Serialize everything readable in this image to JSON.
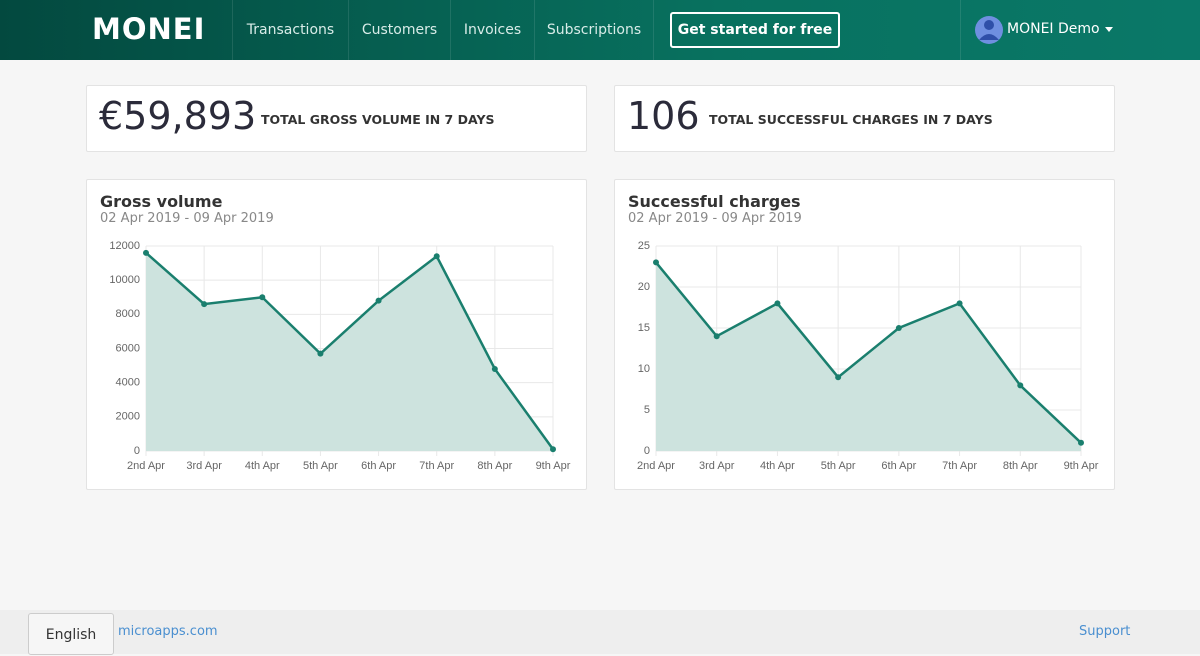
{
  "header": {
    "logo": "MONEI",
    "nav": [
      "Transactions",
      "Customers",
      "Invoices",
      "Subscriptions"
    ],
    "cta": "Get started for free",
    "user": "MONEI Demo"
  },
  "stats": [
    {
      "value": "€59,893",
      "label": "TOTAL GROSS VOLUME IN 7 DAYS"
    },
    {
      "value": 106,
      "label": "TOTAL SUCCESSFUL CHARGES IN 7 DAYS"
    }
  ],
  "chart_data": [
    {
      "type": "line",
      "title": "Gross volume",
      "subtitle": "02 Apr 2019 - 09 Apr 2019",
      "categories": [
        "2nd Apr",
        "3rd Apr",
        "4th Apr",
        "5th Apr",
        "6th Apr",
        "7th Apr",
        "8th Apr",
        "9th Apr"
      ],
      "values": [
        11600,
        8600,
        9000,
        5700,
        8800,
        11400,
        4800,
        100
      ],
      "color": "#1a7f6e",
      "fill": "#cde3de",
      "grid": true,
      "ylim": [
        0,
        12000
      ],
      "yticks": [
        0,
        2000,
        4000,
        6000,
        8000,
        10000,
        12000
      ]
    },
    {
      "type": "line",
      "title": "Successful charges",
      "subtitle": "02 Apr 2019 - 09 Apr 2019",
      "categories": [
        "2nd Apr",
        "3rd Apr",
        "4th Apr",
        "5th Apr",
        "6th Apr",
        "7th Apr",
        "8th Apr",
        "9th Apr"
      ],
      "values": [
        23,
        14,
        18,
        9,
        15,
        18,
        8,
        1
      ],
      "color": "#1a7f6e",
      "fill": "#cde3de",
      "grid": true,
      "ylim": [
        0,
        25
      ],
      "yticks": [
        0,
        5,
        10,
        15,
        20,
        25
      ]
    }
  ],
  "footer": {
    "language": "English",
    "site": "microapps.com",
    "support": "Support"
  }
}
